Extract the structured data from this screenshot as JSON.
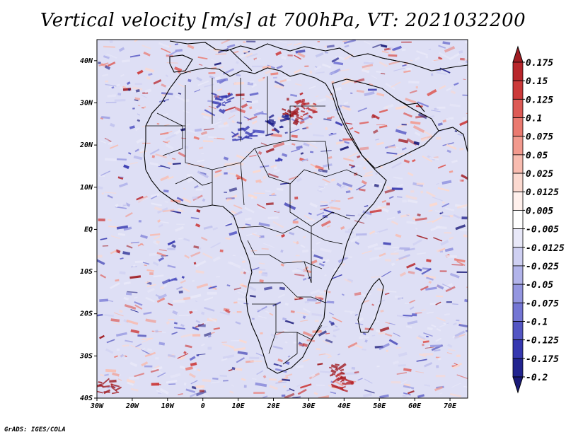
{
  "title": "Vertical velocity [m/s] at 700hPa, VT: 2021032200",
  "footer": "GrADS: IGES/COLA",
  "map": {
    "lat_labels": [
      "40N",
      "30N",
      "20N",
      "10N",
      "EQ",
      "10S",
      "20S",
      "30S",
      "40S"
    ],
    "lon_labels": [
      "30W",
      "20W",
      "10W",
      "0",
      "10E",
      "20E",
      "30E",
      "40E",
      "50E",
      "60E",
      "70E"
    ],
    "lat_range_deg": [
      -40,
      45
    ],
    "lon_range_deg": [
      -30,
      75
    ]
  },
  "colorbar": {
    "labels": [
      "0.175",
      "0.15",
      "0.125",
      "0.1",
      "0.075",
      "0.05",
      "0.025",
      "0.0125",
      "0.005",
      "-0.005",
      "-0.0125",
      "-0.025",
      "-0.05",
      "-0.075",
      "-0.1",
      "-0.125",
      "-0.175",
      "-0.2"
    ],
    "colors": [
      "#a01c22",
      "#b8262b",
      "#cc3a3a",
      "#dd5a55",
      "#ea7a70",
      "#f29a8e",
      "#f8bcb0",
      "#fbd9d0",
      "#fff0ec",
      "#ffffff",
      "#e8e8f8",
      "#cfd0f2",
      "#b2b4ea",
      "#9496e0",
      "#7476d4",
      "#5456c4",
      "#3638b0",
      "#22248f",
      "#1a1a78"
    ]
  }
}
